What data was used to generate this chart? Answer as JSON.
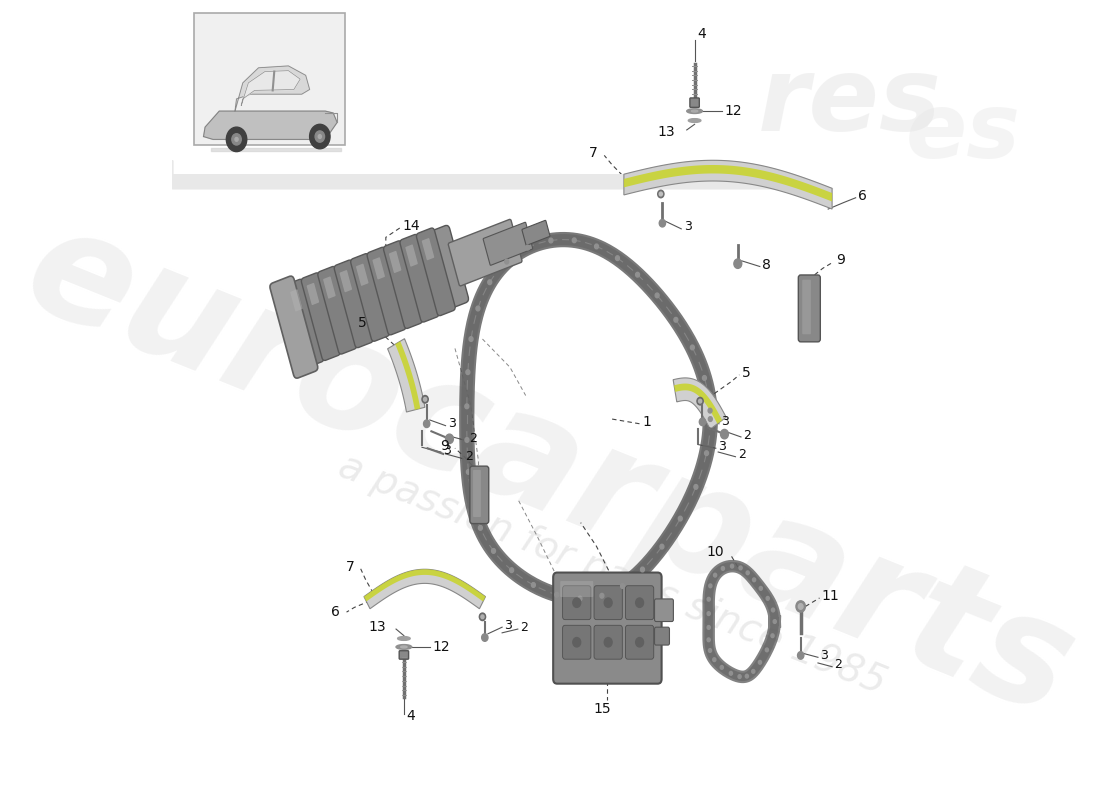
{
  "bg_color": "#ffffff",
  "wm1": "eurocarparts",
  "wm2": "a passion for parts since 1985",
  "wm_color": "#cccccc",
  "lbl_color": "#111111",
  "line_color": "#666666",
  "dark_grey": "#606060",
  "mid_grey": "#909090",
  "light_grey": "#b8b8b8",
  "chain_dark": "#505050",
  "chain_mid": "#787878",
  "rail_green": "#7a8c10",
  "rail_yellow": "#c8d428",
  "chain_size": 8,
  "label_fs": 10
}
